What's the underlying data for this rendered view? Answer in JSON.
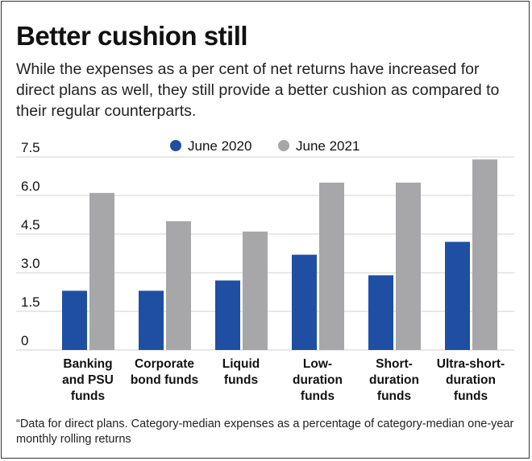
{
  "title": "Better cushion still",
  "subtitle": "While the expenses as a per cent of net returns have increased for direct plans as well, they still provide a better cushion as compared to their regular counterparts.",
  "footnote": "“Data for direct plans. Category-median expenses as a percentage of category-median one-year monthly rolling returns",
  "colors": {
    "series_2020": "#1f4fa3",
    "series_2021": "#a7a7aa",
    "grid": "#d0d0d0"
  },
  "chart_data": {
    "type": "bar",
    "categories": [
      [
        "Banking",
        "and PSU",
        "funds"
      ],
      [
        "Corporate",
        "bond funds"
      ],
      [
        "Liquid",
        "funds"
      ],
      [
        "Low-",
        "duration",
        "funds"
      ],
      [
        "Short-",
        "duration",
        "funds"
      ],
      [
        "Ultra-short-",
        "duration",
        "funds"
      ]
    ],
    "series": [
      {
        "name": "June 2020",
        "color": "#1f4fa3",
        "values": [
          2.3,
          2.3,
          2.7,
          3.7,
          2.9,
          4.2
        ]
      },
      {
        "name": "June 2021",
        "color": "#a7a7aa",
        "values": [
          6.1,
          5.0,
          4.6,
          6.5,
          6.5,
          7.4
        ]
      }
    ],
    "yticks": [
      "0",
      "1.5",
      "3.0",
      "4.5",
      "6.0",
      "7.5"
    ],
    "ylim": [
      0,
      7.5
    ],
    "legend_position": "top-center",
    "grid": true
  }
}
